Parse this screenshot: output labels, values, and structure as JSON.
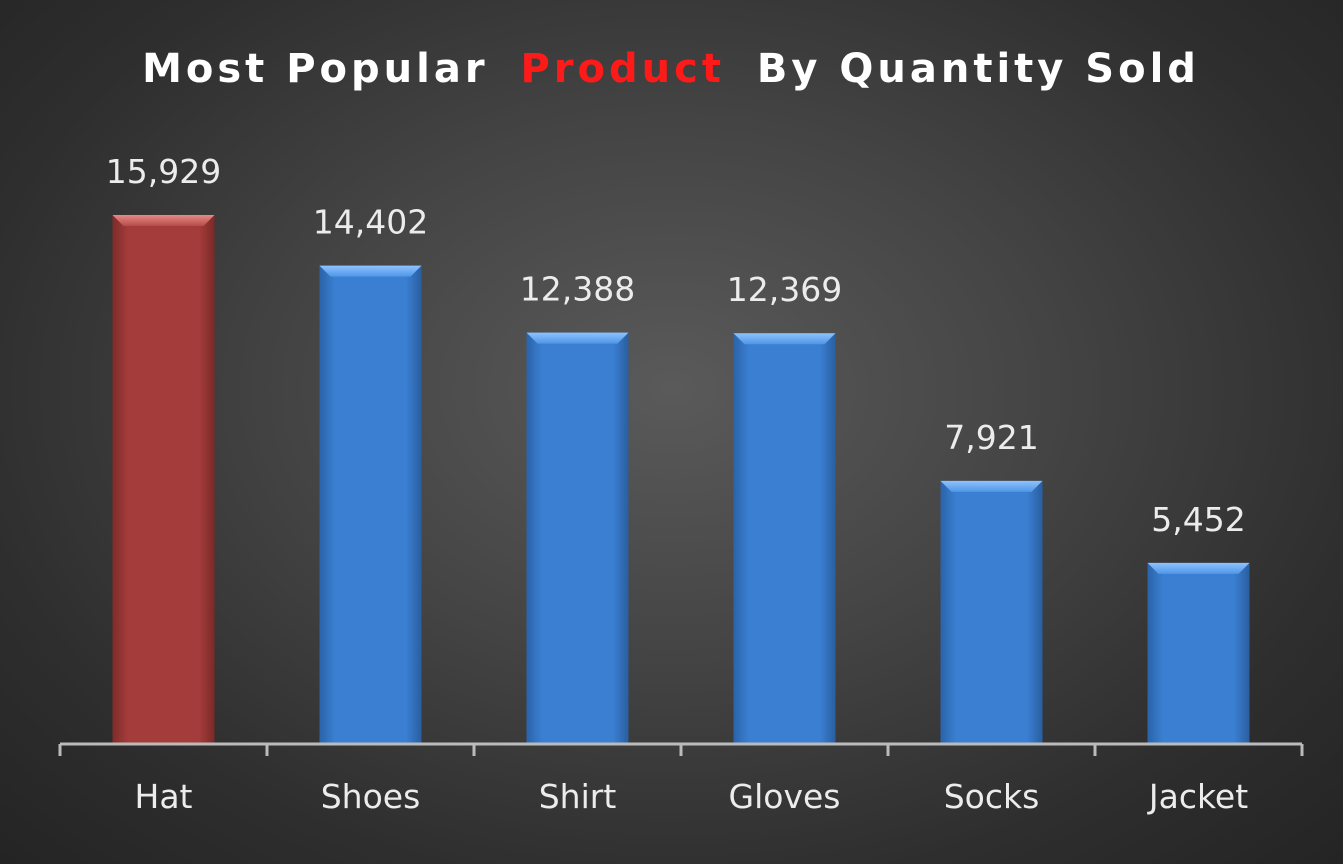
{
  "chart_data": {
    "type": "bar",
    "title": {
      "part1": "Most Popular",
      "highlight": "Product",
      "part2": "By Quantity Sold"
    },
    "categories": [
      "Hat",
      "Shoes",
      "Shirt",
      "Gloves",
      "Socks",
      "Jacket"
    ],
    "values": [
      15929,
      14402,
      12388,
      12369,
      7921,
      5452
    ],
    "data_labels": [
      "15,929",
      "14,402",
      "12,388",
      "12,369",
      "7,921",
      "5,452"
    ],
    "xlabel": "",
    "ylabel": "",
    "ylim": [
      0,
      16500
    ],
    "grid": false,
    "legend": "none",
    "highlight_index": 0,
    "colors": {
      "highlight_bar": "#a33c3a",
      "bar": "#3a7fd2",
      "title_text": "#ffffff",
      "title_accent": "#ff1a1a",
      "labels": "#ececec",
      "axis": "#bbbbbb"
    }
  }
}
